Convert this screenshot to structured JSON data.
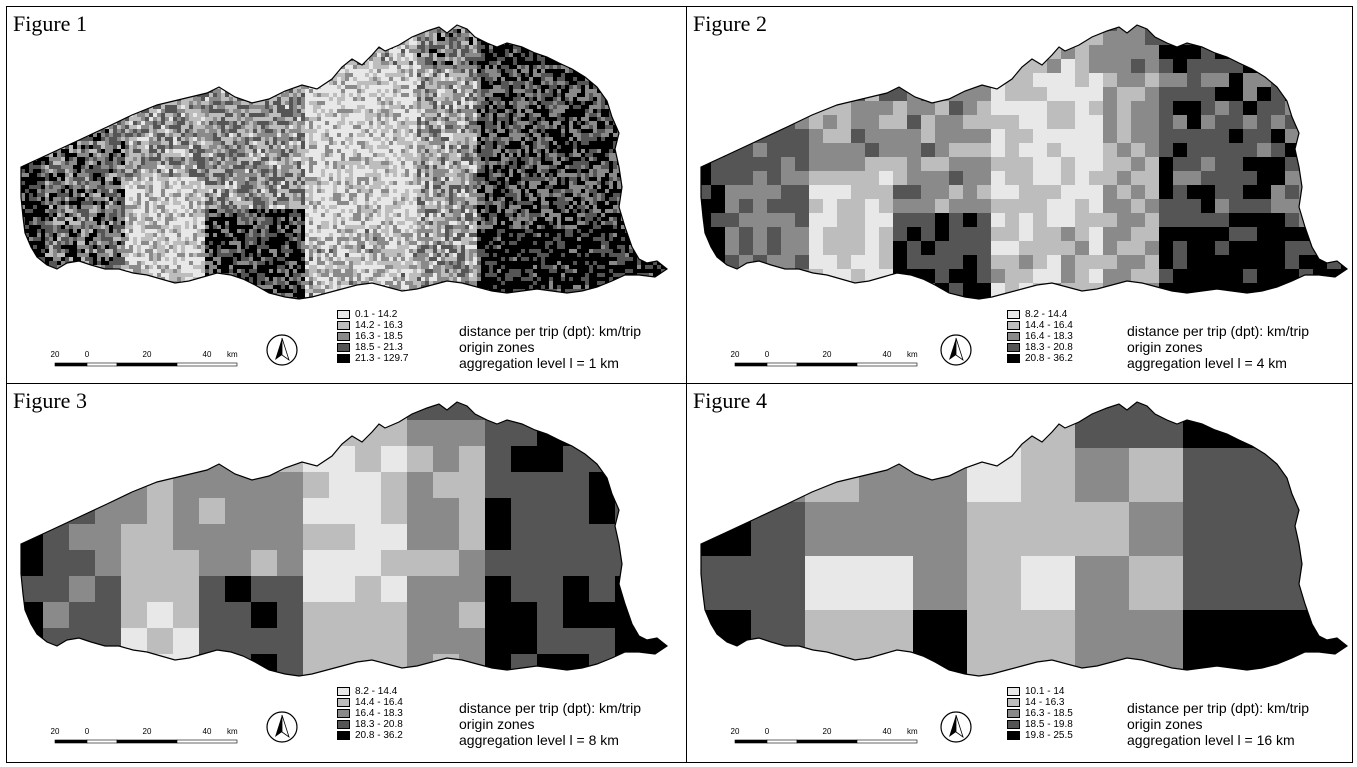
{
  "panels": [
    {
      "title": "Figure 1",
      "legend": [
        "0.1 - 14.2",
        "14.2 - 16.3",
        "16.3 - 18.5",
        "18.5 - 21.3",
        "21.3 - 129.7"
      ],
      "caption": [
        "distance per trip (dpt): km/trip",
        "origin zones",
        "aggregation level l = 1 km"
      ],
      "aggregation_km": 1
    },
    {
      "title": "Figure 2",
      "legend": [
        "8.2 - 14.4",
        "14.4 - 16.4",
        "16.4 - 18.3",
        "18.3 - 20.8",
        "20.8 - 36.2"
      ],
      "caption": [
        "distance per trip (dpt): km/trip",
        "origin zones",
        "aggregation level l = 4 km"
      ],
      "aggregation_km": 4
    },
    {
      "title": "Figure 3",
      "legend": [
        "8.2 - 14.4",
        "14.4 - 16.4",
        "16.4 - 18.3",
        "18.3 - 20.8",
        "20.8 - 36.2"
      ],
      "caption": [
        "distance per trip (dpt): km/trip",
        "origin zones",
        "aggregation level l = 8 km"
      ],
      "aggregation_km": 8
    },
    {
      "title": "Figure 4",
      "legend": [
        "10.1 - 14",
        "14 - 16.3",
        "16.3 - 18.5",
        "18.5 - 19.8",
        "19.8 - 25.5"
      ],
      "caption": [
        "distance per trip (dpt): km/trip",
        "origin zones",
        "aggregation level l = 16 km"
      ],
      "aggregation_km": 16
    }
  ],
  "scale": {
    "ticks": [
      "20",
      "0",
      "20",
      "40"
    ],
    "unit": "km"
  },
  "class_colors": [
    "#e8e8e8",
    "#bdbdbd",
    "#8a8a8a",
    "#555555",
    "#000000"
  ]
}
